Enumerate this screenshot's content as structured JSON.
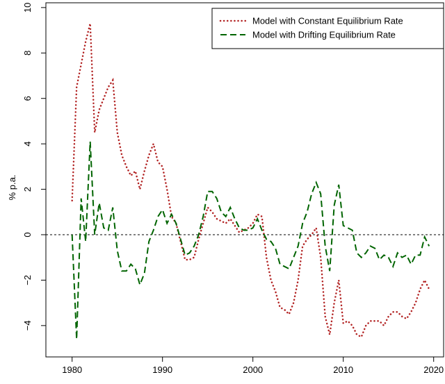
{
  "chart_data": {
    "type": "line",
    "y_label": "% p.a.",
    "x": [
      1980,
      1980.5,
      1981,
      1981.5,
      1982,
      1982.5,
      1983,
      1983.5,
      1984,
      1984.5,
      1985,
      1985.5,
      1986,
      1986.5,
      1987,
      1987.5,
      1988,
      1988.5,
      1989,
      1989.5,
      1990,
      1990.5,
      1991,
      1991.5,
      1992,
      1992.5,
      1993,
      1993.5,
      1994,
      1994.5,
      1995,
      1995.5,
      1996,
      1996.5,
      1997,
      1997.5,
      1998,
      1998.5,
      1999,
      1999.5,
      2000,
      2000.5,
      2001,
      2001.5,
      2002,
      2002.5,
      2003,
      2003.5,
      2004,
      2004.5,
      2005,
      2005.5,
      2006,
      2006.5,
      2007,
      2007.5,
      2008,
      2008.5,
      2009,
      2009.5,
      2010,
      2010.5,
      2011,
      2011.5,
      2012,
      2012.5,
      2013,
      2013.5,
      2014,
      2014.5,
      2015,
      2015.5,
      2016,
      2016.5,
      2017,
      2017.5,
      2018,
      2018.5,
      2019,
      2019.5
    ],
    "series": [
      {
        "name": "Model with Constant Equilibrium Rate",
        "color": "#b22222",
        "style": "dotted",
        "values": [
          1.5,
          6.5,
          7.5,
          8.5,
          9.3,
          4.5,
          5.5,
          6,
          6.5,
          6.8,
          4.5,
          3.5,
          3,
          2.6,
          2.8,
          2,
          2.8,
          3.5,
          4,
          3.2,
          3,
          2,
          0.8,
          0.5,
          -0.3,
          -1.1,
          -1.1,
          -1,
          -0.2,
          0.5,
          1.2,
          1,
          0.7,
          0.6,
          0.5,
          0.7,
          0.4,
          0.1,
          0.2,
          0.3,
          0.5,
          0.9,
          0.8,
          -1,
          -2,
          -2.5,
          -3.2,
          -3.3,
          -3.5,
          -3,
          -2,
          -0.5,
          -0.2,
          0,
          0.3,
          -1,
          -3.6,
          -4.4,
          -3,
          -2,
          -3.9,
          -3.8,
          -4,
          -4.4,
          -4.5,
          -4,
          -3.8,
          -3.8,
          -3.8,
          -4,
          -3.6,
          -3.4,
          -3.4,
          -3.6,
          -3.7,
          -3.4,
          -3,
          -2.4,
          -2,
          -2.4
        ]
      },
      {
        "name": "Model with Drifting Equilibrium Rate",
        "color": "#006400",
        "style": "dashed",
        "values": [
          0,
          -4.6,
          1.6,
          -0.3,
          4.1,
          0,
          1.4,
          0.3,
          0.2,
          1.2,
          -0.7,
          -1.6,
          -1.6,
          -1.3,
          -1.5,
          -2.2,
          -1.7,
          -0.3,
          0.2,
          0.8,
          1.1,
          0.5,
          0.9,
          0.5,
          -0.2,
          -0.9,
          -0.8,
          -0.5,
          0,
          0.8,
          1.9,
          1.9,
          1.6,
          1,
          0.8,
          1.2,
          0.7,
          0.3,
          0.2,
          0.2,
          0.3,
          0.7,
          0.2,
          -0.2,
          -0.3,
          -0.6,
          -1.3,
          -1.4,
          -1.5,
          -1,
          -0.5,
          0.5,
          1,
          1.8,
          2.3,
          1.8,
          -0.5,
          -1.6,
          1.3,
          2.2,
          0.4,
          0.3,
          0.2,
          -0.8,
          -1,
          -0.8,
          -0.5,
          -0.6,
          -1.1,
          -0.9,
          -1,
          -1.4,
          -0.8,
          -1,
          -0.9,
          -1.3,
          -0.9,
          -0.9,
          -0.1,
          -0.5
        ]
      }
    ],
    "xlim": [
      1977.1,
      2021.1
    ],
    "xticks": [
      1980,
      1990,
      2000,
      2010,
      2020
    ],
    "ylim": [
      -5.38,
      10.21
    ],
    "yticks": [
      {
        "value": -4,
        "label": "−4"
      },
      {
        "value": -2,
        "label": "−2"
      },
      0,
      2,
      4,
      6,
      8,
      10
    ],
    "reference_line": 0,
    "legend": "top-right"
  }
}
